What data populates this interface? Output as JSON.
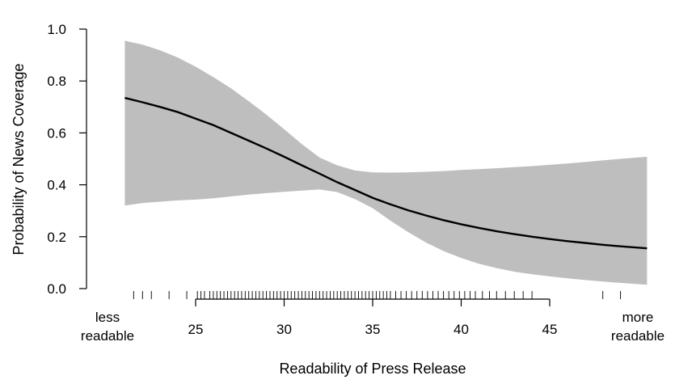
{
  "chart_data": {
    "type": "line",
    "xlabel": "Readability of Press Release",
    "ylabel": "Probability of News Coverage",
    "xlim": [
      19.5,
      51
    ],
    "ylim": [
      0,
      1
    ],
    "x_ticks": [
      25,
      30,
      35,
      40,
      45
    ],
    "y_ticks": [
      0.0,
      0.2,
      0.4,
      0.6,
      0.8,
      1.0
    ],
    "y_tick_labels": [
      "0.0",
      "0.2",
      "0.4",
      "0.6",
      "0.8",
      "1.0"
    ],
    "left_annotation": [
      "less",
      "readable"
    ],
    "right_annotation": [
      "more",
      "readable"
    ],
    "grid": false,
    "series": [
      {
        "x": [
          21,
          22,
          23,
          24,
          25,
          26,
          27,
          28,
          29,
          30,
          31,
          32,
          33,
          34,
          35,
          36,
          37,
          38,
          39,
          40,
          41,
          42,
          43,
          44,
          45,
          46,
          47,
          48,
          49,
          50.5
        ],
        "y": [
          0.735,
          0.718,
          0.7,
          0.68,
          0.655,
          0.63,
          0.6,
          0.57,
          0.54,
          0.508,
          0.475,
          0.443,
          0.41,
          0.38,
          0.35,
          0.325,
          0.302,
          0.282,
          0.264,
          0.248,
          0.234,
          0.221,
          0.21,
          0.2,
          0.191,
          0.183,
          0.176,
          0.169,
          0.163,
          0.155
        ],
        "lower": [
          0.32,
          0.33,
          0.335,
          0.34,
          0.343,
          0.348,
          0.355,
          0.362,
          0.368,
          0.373,
          0.378,
          0.382,
          0.372,
          0.345,
          0.31,
          0.262,
          0.218,
          0.178,
          0.145,
          0.118,
          0.096,
          0.079,
          0.065,
          0.055,
          0.047,
          0.04,
          0.033,
          0.027,
          0.022,
          0.015
        ],
        "upper": [
          0.955,
          0.94,
          0.918,
          0.89,
          0.855,
          0.815,
          0.772,
          0.722,
          0.67,
          0.614,
          0.557,
          0.505,
          0.475,
          0.455,
          0.448,
          0.447,
          0.448,
          0.45,
          0.453,
          0.457,
          0.46,
          0.464,
          0.468,
          0.472,
          0.477,
          0.482,
          0.488,
          0.494,
          0.5,
          0.508
        ]
      }
    ],
    "rug": [
      21.5,
      22,
      22.5,
      23.5,
      24.5,
      25.1,
      25.3,
      25.5,
      25.8,
      26,
      26.2,
      26.4,
      26.6,
      26.8,
      27,
      27.2,
      27.4,
      27.6,
      27.8,
      28,
      28.2,
      28.4,
      28.6,
      28.8,
      29,
      29.2,
      29.4,
      29.6,
      29.8,
      30,
      30.2,
      30.4,
      30.6,
      30.8,
      31,
      31.2,
      31.4,
      31.6,
      31.8,
      32,
      32.2,
      32.4,
      32.6,
      32.8,
      33,
      33.2,
      33.4,
      33.6,
      33.8,
      34,
      34.2,
      34.4,
      34.6,
      34.8,
      35,
      35.2,
      35.4,
      35.6,
      35.8,
      36,
      36.3,
      36.6,
      36.9,
      37.2,
      37.5,
      37.8,
      38.1,
      38.4,
      38.7,
      39,
      39.3,
      39.6,
      39.9,
      40.2,
      40.5,
      40.8,
      41.2,
      41.6,
      42,
      42.5,
      43,
      43.5,
      44,
      48,
      49
    ],
    "colors": {
      "band": "#bebebe",
      "line": "#000000",
      "axis": "#000000"
    }
  }
}
